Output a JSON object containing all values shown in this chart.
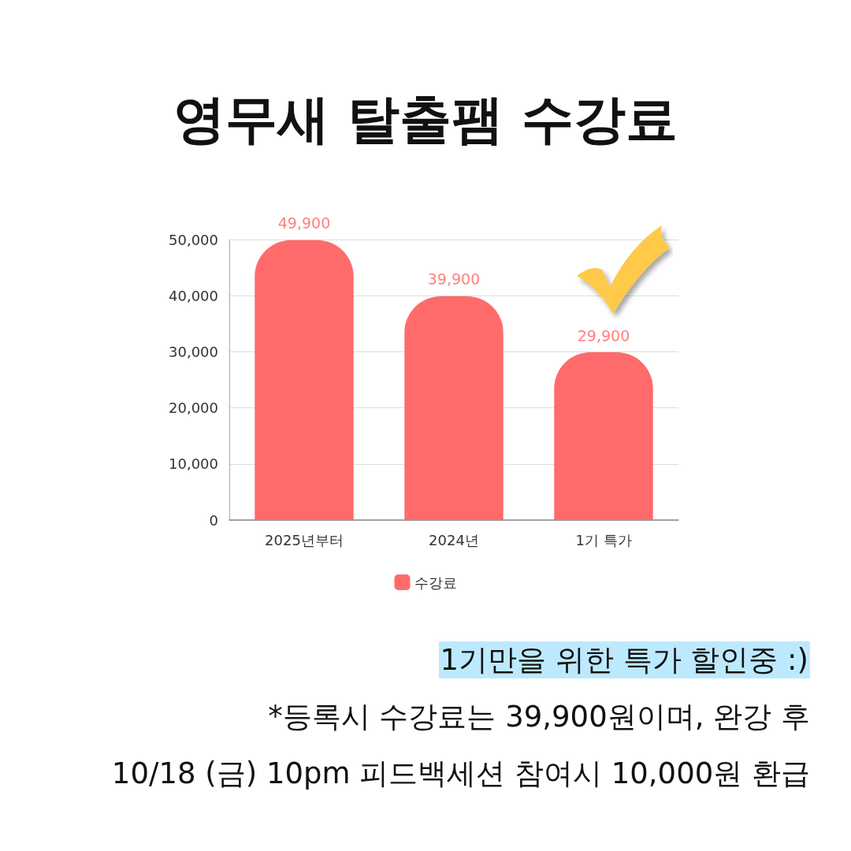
{
  "chart_data": {
    "type": "bar",
    "title": "영무새 탈출팸 수강료",
    "categories": [
      "2025년부터",
      "2024년",
      "1기 특가"
    ],
    "series": [
      {
        "name": "수강료",
        "color": "#ff6b6b",
        "values": [
          49900,
          39900,
          29900
        ],
        "value_labels": [
          "49,900",
          "39,900",
          "29,900"
        ]
      }
    ],
    "ylim": [
      0,
      50000
    ],
    "yticks": [
      {
        "value": 0,
        "label": "0"
      },
      {
        "value": 10000,
        "label": "10,000"
      },
      {
        "value": 20000,
        "label": "20,000"
      },
      {
        "value": 30000,
        "label": "30,000"
      },
      {
        "value": 40000,
        "label": "40,000"
      },
      {
        "value": 50000,
        "label": "50,000"
      }
    ],
    "grid": "y",
    "legend": "bottom",
    "annotations": [
      "1기만을 위한 특가 할인중 :)",
      "*등록시 수강료는 39,900원이며, 완강 후",
      "10/18 (금) 10pm 피드백세션 참여시 10,000원 환급"
    ]
  }
}
